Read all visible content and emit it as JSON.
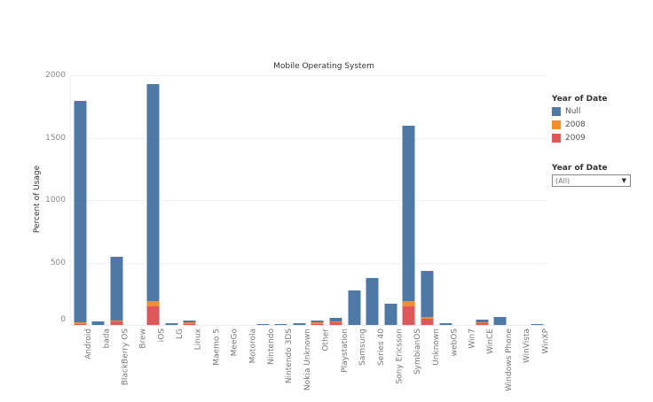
{
  "chart_data": {
    "type": "bar",
    "stacked": true,
    "title": "Mobile Operating System",
    "xlabel": "",
    "ylabel": "Percent of Usage",
    "ylim": [
      0,
      2000
    ],
    "yticks": [
      0,
      500,
      1000,
      1500,
      2000
    ],
    "grid": true,
    "legend_position": "right",
    "legend_title": "Year of Date",
    "categories": [
      "Android",
      "bada",
      "BlackBerry OS",
      "Brew",
      "iOS",
      "LG",
      "Linux",
      "Maemo 5",
      "MeeGo",
      "Motorola",
      "Nintendo",
      "Nintendo 3DS",
      "Nokia Unknown",
      "Other",
      "Playstation",
      "Samsung",
      "Series 40",
      "Sony Ericsson",
      "SymbianOS",
      "Unknown",
      "webOS",
      "Win7",
      "WinCE",
      "Windows Phone",
      "WinVista",
      "WinXP"
    ],
    "series": [
      {
        "name": "2009",
        "color": "#e15759",
        "values": [
          3,
          0,
          25,
          0,
          150,
          0,
          3,
          0,
          0,
          0,
          0,
          0,
          0,
          4,
          18,
          0,
          0,
          0,
          150,
          48,
          0,
          0,
          12,
          0,
          0,
          0
        ]
      },
      {
        "name": "2008",
        "color": "#f28e2b",
        "values": [
          5,
          0,
          12,
          0,
          40,
          0,
          5,
          0,
          0,
          0,
          0,
          0,
          0,
          5,
          10,
          0,
          0,
          0,
          42,
          16,
          0,
          0,
          6,
          0,
          0,
          0
        ]
      },
      {
        "name": "Null",
        "color": "#4e79a7",
        "values": [
          1772,
          25,
          510,
          0,
          1740,
          15,
          15,
          0,
          0,
          0,
          8,
          8,
          15,
          12,
          28,
          276,
          376,
          170,
          1405,
          370,
          15,
          0,
          18,
          64,
          0,
          3
        ]
      }
    ]
  },
  "legend": {
    "title": "Year of Date",
    "items": [
      {
        "label": "Null",
        "color": "#4e79a7"
      },
      {
        "label": "2008",
        "color": "#f28e2b"
      },
      {
        "label": "2009",
        "color": "#e15759"
      }
    ]
  },
  "filter": {
    "title": "Year of Date",
    "value": "(All)"
  }
}
